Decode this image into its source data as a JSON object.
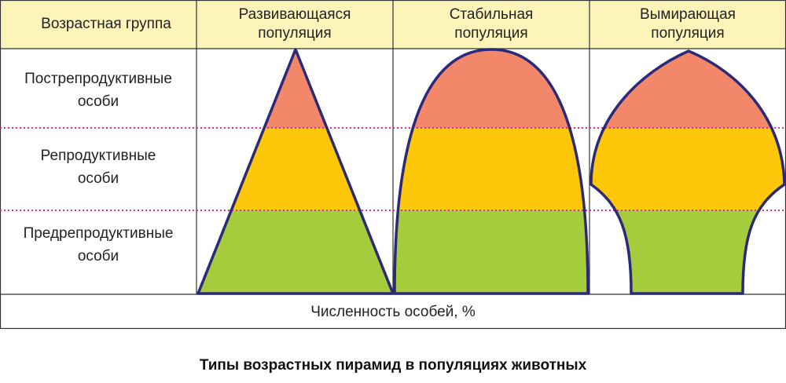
{
  "header": {
    "first": "Возрастная группа",
    "columns": [
      [
        "Развивающаяся",
        "популяция"
      ],
      [
        "Стабильная",
        "популяция"
      ],
      [
        "Вымирающая",
        "популяция"
      ]
    ]
  },
  "rows": [
    [
      "Пострепродуктивные",
      "особи"
    ],
    [
      "Репродуктивные",
      "особи"
    ],
    [
      "Предрепродуктивные",
      "особи"
    ]
  ],
  "footer": "Численность особей, %",
  "caption": "Типы возрастных пирамид в популяциях животных"
}
